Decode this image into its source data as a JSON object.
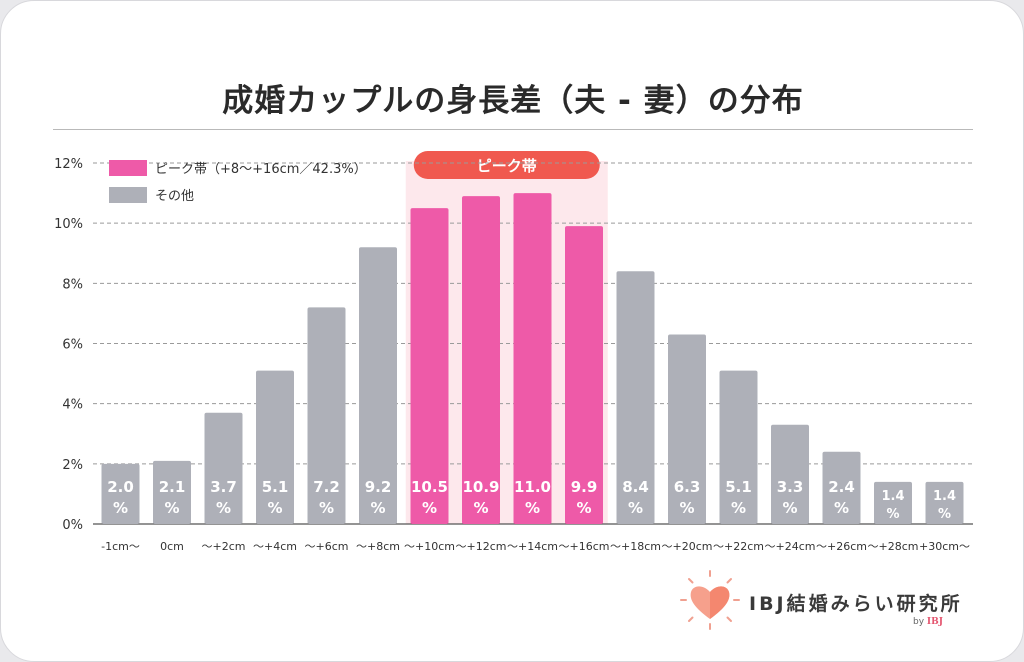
{
  "colors": {
    "peak": "#ee5aa8",
    "other": "#aeb0b8",
    "peak_band": "#fde8ec",
    "peak_badge": "#f0594f",
    "grid": "#9a9a9a",
    "axis_text": "#333333",
    "bar_label": "#ffffff"
  },
  "chart_data": {
    "type": "bar",
    "title": "成婚カップルの身長差（夫 - 妻）の分布",
    "categories": [
      "-1cm〜",
      "0cm",
      "〜+2cm",
      "〜+4cm",
      "〜+6cm",
      "〜+8cm",
      "〜+10cm",
      "〜+12cm",
      "〜+14cm",
      "〜+16cm",
      "〜+18cm",
      "〜+20cm",
      "〜+22cm",
      "〜+24cm",
      "〜+26cm",
      "〜+28cm",
      "+30cm〜"
    ],
    "values": [
      2.0,
      2.1,
      3.7,
      5.1,
      7.2,
      9.2,
      10.5,
      10.9,
      11.0,
      9.9,
      8.4,
      6.3,
      5.1,
      3.3,
      2.4,
      1.4,
      1.4
    ],
    "value_labels": [
      "2.0",
      "2.1",
      "3.7",
      "5.1",
      "7.2",
      "9.2",
      "10.5",
      "10.9",
      "11.0",
      "9.9",
      "8.4",
      "6.3",
      "5.1",
      "3.3",
      "2.4",
      "1.4",
      "1.4"
    ],
    "value_unit": "%",
    "peak_categories": [
      6,
      7,
      8,
      9
    ],
    "ylim": [
      0,
      12
    ],
    "yticks": [
      0,
      2,
      4,
      6,
      8,
      10,
      12
    ],
    "ytick_labels": [
      "0%",
      "2%",
      "4%",
      "6%",
      "8%",
      "10%",
      "12%"
    ],
    "grid": "horizontal-dashed",
    "legend": [
      {
        "name": "ピーク帯（+8〜+16cm／42.3%）",
        "color_key": "peak"
      },
      {
        "name": "その他",
        "color_key": "other"
      }
    ],
    "legend_position": "top-left",
    "annotation": "ピーク帯"
  },
  "logo": {
    "name": "IBJ結婚みらい研究所",
    "by_prefix": "by",
    "by_brand": "IBJ"
  }
}
